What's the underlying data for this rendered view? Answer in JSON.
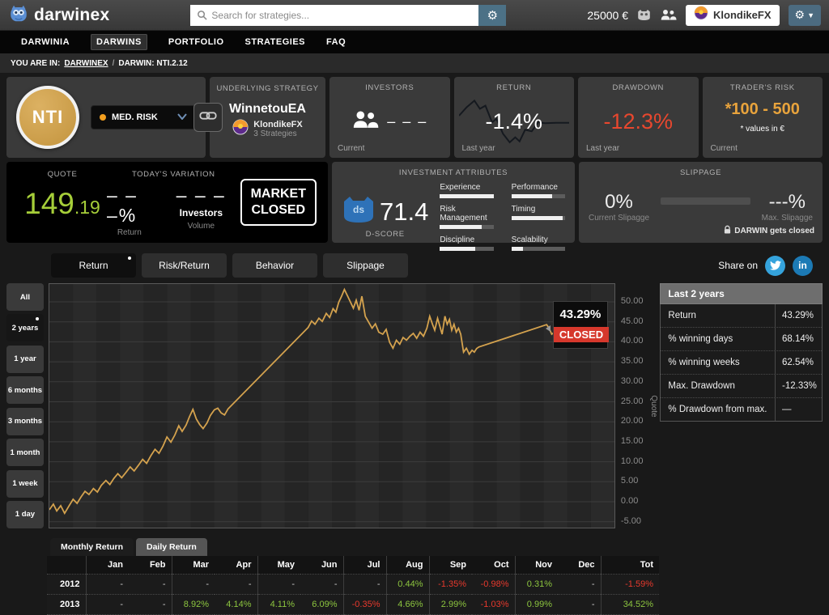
{
  "topbar": {
    "logo_text": "darwinex",
    "search_placeholder": "Search for strategies...",
    "balance": "25000 €",
    "user_name": "KlondikeFX"
  },
  "nav": {
    "items": [
      {
        "label": "DARWINIA",
        "active": false
      },
      {
        "label": "DARWINS",
        "active": true
      },
      {
        "label": "PORTFOLIO",
        "active": false
      },
      {
        "label": "STRATEGIES",
        "active": false
      },
      {
        "label": "FAQ",
        "active": false
      }
    ]
  },
  "breadcrumb": {
    "prefix": "YOU ARE IN:",
    "link": "DARWINEX",
    "sep": "/",
    "current": "DARWIN: NTI.2.12"
  },
  "darwin": {
    "symbol": "NTI",
    "risk_label": "MED. RISK",
    "underlying": {
      "title": "UNDERLYING STRATEGY",
      "strategy": "WinnetouEA",
      "trader": "KlondikeFX",
      "sub": "3 Strategies"
    },
    "investors": {
      "title": "INVESTORS",
      "value": "– – –",
      "footer": "Current"
    },
    "return": {
      "title": "RETURN",
      "value": "-1.4%",
      "footer": "Last year",
      "spark_points": [
        [
          0,
          42
        ],
        [
          7,
          25
        ],
        [
          14,
          12
        ],
        [
          19,
          28
        ],
        [
          24,
          22
        ],
        [
          30,
          55
        ],
        [
          34,
          48
        ],
        [
          40,
          78
        ],
        [
          46,
          95
        ],
        [
          51,
          85
        ],
        [
          55,
          93
        ],
        [
          60,
          70
        ],
        [
          66,
          73
        ],
        [
          72,
          55
        ],
        [
          78,
          57
        ],
        [
          88,
          56
        ],
        [
          100,
          56
        ]
      ]
    },
    "drawdown": {
      "title": "DRAWDOWN",
      "value": "-12.3%",
      "footer": "Last year"
    },
    "traders_risk": {
      "title": "TRADER'S RISK",
      "value": "*100 - 500",
      "note": "* values in €",
      "footer": "Current"
    }
  },
  "quote": {
    "title": "QUOTE",
    "value_int": "149",
    "value_dec": ".19",
    "variation_title": "TODAY'S VARIATION",
    "return_value": "– – –%",
    "return_label": "Return",
    "investors_value": "– – –",
    "investors_inline": "Investors",
    "volume_label": "Volume",
    "market_line1": "MARKET",
    "market_line2": "CLOSED"
  },
  "attributes": {
    "title": "INVESTMENT ATTRIBUTES",
    "owl_text": "ds",
    "score": "71.4",
    "score_label": "D-SCORE",
    "items": [
      {
        "label": "Experience",
        "value": 100
      },
      {
        "label": "Performance",
        "value": 76
      },
      {
        "label": "Risk Management",
        "value": 78
      },
      {
        "label": "Timing",
        "value": 96
      },
      {
        "label": "Discipline",
        "value": 66
      },
      {
        "label": "Scalability",
        "value": 22
      }
    ]
  },
  "slippage": {
    "title": "SLIPPAGE",
    "current_value": "0%",
    "current_label": "Current Slipagge",
    "bar_pct": 0,
    "max_value": "---%",
    "max_label": "Max. Slipagge",
    "note": "DARWIN gets closed"
  },
  "view_tabs": [
    {
      "label": "Return",
      "active": true
    },
    {
      "label": "Risk/Return",
      "active": false
    },
    {
      "label": "Behavior",
      "active": false
    },
    {
      "label": "Slippage",
      "active": false
    }
  ],
  "share": {
    "label": "Share on"
  },
  "ranges": [
    {
      "label": "All",
      "active": false
    },
    {
      "label": "2 years",
      "active": true
    },
    {
      "label": "1 year",
      "active": false
    },
    {
      "label": "6 months",
      "active": false
    },
    {
      "label": "3 months",
      "active": false
    },
    {
      "label": "1 month",
      "active": false
    },
    {
      "label": "1 week",
      "active": false
    },
    {
      "label": "1 day",
      "active": false
    }
  ],
  "tooltip": {
    "value": "43.29%",
    "status": "CLOSED"
  },
  "chart_data": {
    "type": "line",
    "title": "DARWIN NTI.2.12 cumulative return — last 2 years",
    "ylabel": "Quote",
    "ylim": [
      -5,
      50
    ],
    "yticks": [
      50,
      45,
      40,
      35,
      30,
      25,
      20,
      15,
      10,
      5,
      0,
      -5
    ],
    "grid": true,
    "line_color": "#d4a24e",
    "end_value": 43.29,
    "series": [
      {
        "name": "Return",
        "points": [
          [
            0,
            -2
          ],
          [
            0.7,
            -0.6
          ],
          [
            1.3,
            -2.3
          ],
          [
            2,
            -1
          ],
          [
            2.7,
            -2.9
          ],
          [
            3.5,
            -1
          ],
          [
            4.2,
            0.6
          ],
          [
            4.9,
            -0.4
          ],
          [
            5.6,
            1.2
          ],
          [
            6.3,
            2.6
          ],
          [
            7,
            1.8
          ],
          [
            7.8,
            3.3
          ],
          [
            8.5,
            2.4
          ],
          [
            9.2,
            4.1
          ],
          [
            10,
            5.3
          ],
          [
            10.7,
            4.3
          ],
          [
            11.4,
            5.8
          ],
          [
            12.1,
            7
          ],
          [
            12.8,
            6
          ],
          [
            13.6,
            7.4
          ],
          [
            14.3,
            8.7
          ],
          [
            15,
            7.7
          ],
          [
            15.8,
            9.2
          ],
          [
            16.5,
            10.6
          ],
          [
            17.2,
            9.6
          ],
          [
            18,
            11.6
          ],
          [
            18.7,
            13.1
          ],
          [
            19.4,
            12.1
          ],
          [
            20.1,
            13.9
          ],
          [
            20.8,
            16.2
          ],
          [
            21.5,
            14.9
          ],
          [
            22.2,
            16.7
          ],
          [
            22.9,
            19
          ],
          [
            23.5,
            17.6
          ],
          [
            24.2,
            19.2
          ],
          [
            24.8,
            21.3
          ],
          [
            25.4,
            23.1
          ],
          [
            26,
            20.7
          ],
          [
            26.6,
            19.3
          ],
          [
            27.2,
            18.3
          ],
          [
            27.9,
            19.7
          ],
          [
            28.5,
            21.6
          ],
          [
            29.2,
            23
          ],
          [
            29.8,
            23.4
          ],
          [
            30.4,
            22.2
          ],
          [
            31,
            21.7
          ],
          [
            31.6,
            23.2
          ],
          [
            45.8,
            43.6
          ],
          [
            46.4,
            45.2
          ],
          [
            47,
            44.4
          ],
          [
            47.7,
            45.9
          ],
          [
            48.3,
            45.1
          ],
          [
            49,
            47.1
          ],
          [
            49.6,
            46.1
          ],
          [
            50.2,
            48.3
          ],
          [
            50.7,
            47.4
          ],
          [
            51.2,
            49.9
          ],
          [
            51.7,
            51.4
          ],
          [
            52.2,
            53.1
          ],
          [
            52.8,
            51.4
          ],
          [
            53.3,
            49.9
          ],
          [
            53.8,
            48.4
          ],
          [
            54.3,
            50.4
          ],
          [
            54.8,
            47.9
          ],
          [
            55.3,
            51.4
          ],
          [
            55.9,
            46.4
          ],
          [
            56.5,
            44.9
          ],
          [
            57.1,
            43.4
          ],
          [
            57.7,
            44.5
          ],
          [
            58.3,
            42.4
          ],
          [
            59,
            41.9
          ],
          [
            59.6,
            43.1
          ],
          [
            60.2,
            39.9
          ],
          [
            60.8,
            38.4
          ],
          [
            61.4,
            40.4
          ],
          [
            62,
            39.4
          ],
          [
            62.6,
            41.1
          ],
          [
            63.2,
            40.4
          ],
          [
            63.8,
            41.4
          ],
          [
            64.4,
            42.1
          ],
          [
            65,
            40.9
          ],
          [
            65.6,
            42.4
          ],
          [
            66.2,
            41.4
          ],
          [
            66.8,
            43.4
          ],
          [
            67.3,
            46.4
          ],
          [
            67.8,
            44.4
          ],
          [
            68.2,
            42.9
          ],
          [
            68.7,
            45.9
          ],
          [
            69.1,
            43.9
          ],
          [
            69.5,
            41.9
          ],
          [
            70,
            46.4
          ],
          [
            70.4,
            44.4
          ],
          [
            70.8,
            45.6
          ],
          [
            71.2,
            42.9
          ],
          [
            71.6,
            44.4
          ],
          [
            72,
            42.4
          ],
          [
            72.4,
            43.4
          ],
          [
            72.8,
            41.9
          ],
          [
            73.3,
            37.4
          ],
          [
            73.8,
            38.4
          ],
          [
            74.3,
            36.9
          ],
          [
            74.8,
            37.9
          ],
          [
            75.2,
            37.4
          ],
          [
            75.6,
            38.3
          ],
          [
            76,
            38.7
          ],
          [
            88,
            44.3
          ],
          [
            88.4,
            43.5
          ],
          [
            88.9,
            41.9
          ],
          [
            89.4,
            42.4
          ],
          [
            90,
            42.2
          ],
          [
            90.6,
            42.7
          ],
          [
            91.2,
            43.3
          ]
        ]
      }
    ]
  },
  "stats_panel": {
    "title": "Last 2 years",
    "rows": [
      {
        "label": "Return",
        "value": "43.29%"
      },
      {
        "label": "% winning days",
        "value": "68.14%"
      },
      {
        "label": "% winning weeks",
        "value": "62.54%"
      },
      {
        "label": "Max. Drawdown",
        "value": "-12.33%"
      },
      {
        "label": "% Drawdown from max.",
        "value": "—"
      }
    ]
  },
  "returns_table": {
    "tabs": [
      {
        "label": "Monthly Return",
        "active": true
      },
      {
        "label": "Daily Return",
        "active": false
      }
    ],
    "columns": [
      "",
      "Jan",
      "Feb",
      "Mar",
      "Apr",
      "May",
      "Jun",
      "Jul",
      "Aug",
      "Sep",
      "Oct",
      "Nov",
      "Dec",
      "Tot"
    ],
    "rows": [
      {
        "year": "2012",
        "values": [
          "-",
          "-",
          "-",
          "-",
          "-",
          "-",
          "-",
          "0.44%",
          "-1.35%",
          "-0.98%",
          "0.31%",
          "-",
          "-1.59%"
        ]
      },
      {
        "year": "2013",
        "values": [
          "-",
          "-",
          "8.92%",
          "4.14%",
          "4.11%",
          "6.09%",
          "-0.35%",
          "4.66%",
          "2.99%",
          "-1.03%",
          "0.99%",
          "-",
          "34.52%"
        ]
      }
    ]
  }
}
